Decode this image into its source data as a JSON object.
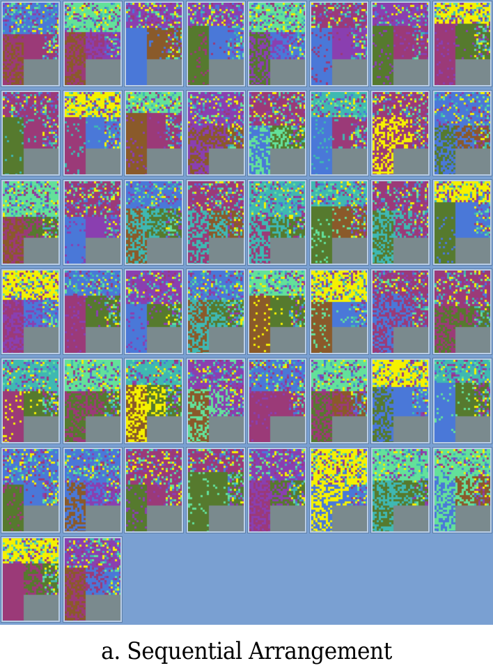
{
  "figure": {
    "caption": "a. Sequential Arrangement",
    "tile_count": 50,
    "columns": 8
  },
  "colors": {
    "background": "#7aa0d2",
    "yellow": "#f5f100",
    "green_light": "#63e19a",
    "teal": "#3fb8b2",
    "blue": "#4a78d8",
    "purple": "#8a3fb0",
    "magenta": "#9b3a78",
    "olive": "#567a2e",
    "brown": "#8a5a2a",
    "gray": "#7a8a8e"
  }
}
